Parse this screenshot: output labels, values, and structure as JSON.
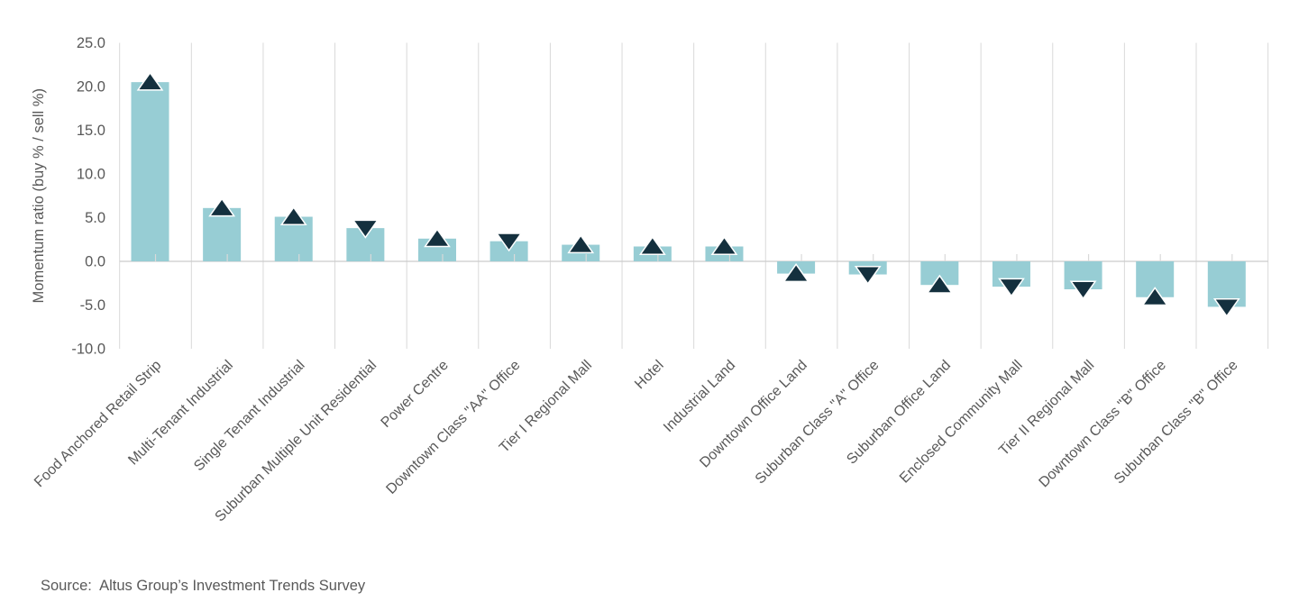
{
  "chart_data": {
    "type": "bar",
    "title": "",
    "xlabel": "",
    "ylabel": "Momentum ratio (buy % / sell %)",
    "ylim": [
      -10.0,
      25.0
    ],
    "ytick_interval": 5.0,
    "yticks": [
      25.0,
      20.0,
      15.0,
      10.0,
      5.0,
      0.0,
      -5.0,
      -10.0
    ],
    "grid": "vertical category separator lines, zero baseline, small category ticks at baseline",
    "legend": "none",
    "categories": [
      "Food Anchored Retail Strip",
      "Multi-Tenant Industrial",
      "Single Tenant Industrial",
      "Suburban Multiple Unit Residential",
      "Power Centre",
      "Downtown Class \"AA\" Office",
      "Tier I Regional Mall",
      "Hotel",
      "Industrial Land",
      "Downtown Office Land",
      "Suburban Class \"A\" Office",
      "Suburban Office Land",
      "Enclosed Community Mall",
      "Tier II Regional Mall",
      "Downtown Class \"B\" Office",
      "Suburban Class \"B\" Office"
    ],
    "values": [
      20.5,
      6.1,
      5.1,
      3.8,
      2.6,
      2.3,
      1.9,
      1.7,
      1.7,
      -1.4,
      -1.5,
      -2.7,
      -2.9,
      -3.2,
      -4.1,
      -5.2
    ],
    "trend_markers": [
      "up",
      "up",
      "up",
      "down",
      "up",
      "down",
      "up",
      "up",
      "up",
      "up",
      "down",
      "up",
      "down",
      "down",
      "up",
      "down"
    ],
    "colors": {
      "bar": "#97cdd4",
      "marker": "#14303e",
      "marker_outline": "#ffffff",
      "gridline": "#d9d9d9",
      "axis_line": "#cccccc",
      "text": "#595959"
    }
  },
  "source_note": "Source:  Altus Group’s Investment Trends Survey"
}
